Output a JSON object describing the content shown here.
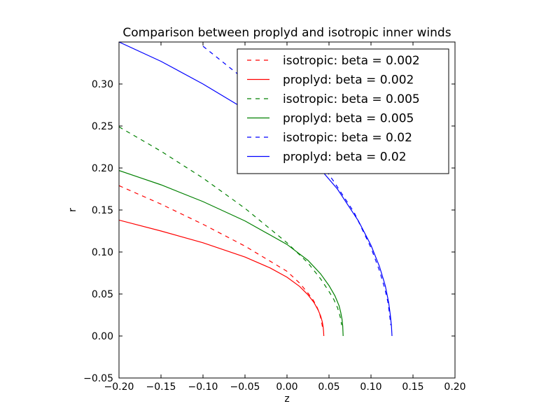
{
  "chart_data": {
    "type": "line",
    "title": "Comparison between proplyd and isotropic inner winds",
    "xlabel": "z",
    "ylabel": "r",
    "xlim": [
      -0.2,
      0.2
    ],
    "ylim": [
      -0.05,
      0.35
    ],
    "xticks": [
      -0.2,
      -0.15,
      -0.1,
      -0.05,
      0.0,
      0.05,
      0.1,
      0.15,
      0.2
    ],
    "xtick_labels": [
      "−0.20",
      "−0.15",
      "−0.10",
      "−0.05",
      "0.00",
      "0.05",
      "0.10",
      "0.15",
      "0.20"
    ],
    "yticks": [
      -0.05,
      0.0,
      0.05,
      0.1,
      0.15,
      0.2,
      0.25,
      0.3
    ],
    "ytick_labels": [
      "−0.05",
      "0.00",
      "0.05",
      "0.10",
      "0.15",
      "0.20",
      "0.25",
      "0.30"
    ],
    "grid": false,
    "legend_position": "top-right",
    "series": [
      {
        "name": "isotropic: beta = 0.002",
        "color": "#ff0000",
        "dash": "dashed",
        "x": [
          -0.2,
          -0.15,
          -0.1,
          -0.05,
          0.0,
          0.015,
          0.025,
          0.031,
          0.035,
          0.038,
          0.0395,
          0.041,
          0.042,
          0.0425
        ],
        "y": [
          0.179,
          0.157,
          0.133,
          0.107,
          0.077,
          0.063,
          0.051,
          0.043,
          0.036,
          0.029,
          0.024,
          0.018,
          0.012,
          0.008
        ]
      },
      {
        "name": "proplyd: beta = 0.002",
        "color": "#ff0000",
        "dash": "solid",
        "x": [
          -0.2,
          -0.15,
          -0.1,
          -0.05,
          -0.02,
          0.0,
          0.015,
          0.025,
          0.032,
          0.037,
          0.04,
          0.042,
          0.043,
          0.0435,
          0.0438
        ],
        "y": [
          0.138,
          0.125,
          0.111,
          0.094,
          0.081,
          0.07,
          0.059,
          0.049,
          0.04,
          0.031,
          0.024,
          0.017,
          0.011,
          0.006,
          0.0
        ]
      },
      {
        "name": "isotropic: beta = 0.005",
        "color": "#008000",
        "dash": "dashed",
        "x": [
          -0.2,
          -0.15,
          -0.1,
          -0.05,
          0.0,
          0.025,
          0.04,
          0.05,
          0.056,
          0.06,
          0.062,
          0.064,
          0.065
        ],
        "y": [
          0.249,
          0.22,
          0.188,
          0.152,
          0.111,
          0.087,
          0.068,
          0.053,
          0.043,
          0.034,
          0.028,
          0.02,
          0.013
        ]
      },
      {
        "name": "proplyd: beta = 0.005",
        "color": "#008000",
        "dash": "solid",
        "x": [
          -0.2,
          -0.15,
          -0.1,
          -0.05,
          0.0,
          0.025,
          0.04,
          0.05,
          0.057,
          0.062,
          0.064,
          0.0655,
          0.0663,
          0.0668
        ],
        "y": [
          0.197,
          0.18,
          0.16,
          0.137,
          0.109,
          0.09,
          0.074,
          0.06,
          0.048,
          0.036,
          0.028,
          0.02,
          0.012,
          0.0
        ]
      },
      {
        "name": "isotropic: beta = 0.02",
        "color": "#0000ff",
        "dash": "dashed",
        "x": [
          -0.1,
          -0.06,
          -0.02,
          0.02,
          0.055,
          0.08,
          0.1,
          0.11,
          0.116,
          0.12,
          0.122,
          0.1235
        ],
        "y": [
          0.345,
          0.313,
          0.276,
          0.235,
          0.185,
          0.147,
          0.105,
          0.078,
          0.058,
          0.041,
          0.027,
          0.013
        ]
      },
      {
        "name": "proplyd: beta = 0.02",
        "color": "#0000ff",
        "dash": "solid",
        "x": [
          -0.2,
          -0.15,
          -0.1,
          -0.05,
          0.0,
          0.03,
          0.06,
          0.085,
          0.1,
          0.11,
          0.117,
          0.121,
          0.123,
          0.1243,
          0.125
        ],
        "y": [
          0.35,
          0.327,
          0.3,
          0.27,
          0.238,
          0.21,
          0.175,
          0.137,
          0.108,
          0.083,
          0.06,
          0.04,
          0.025,
          0.012,
          0.0
        ]
      }
    ]
  }
}
